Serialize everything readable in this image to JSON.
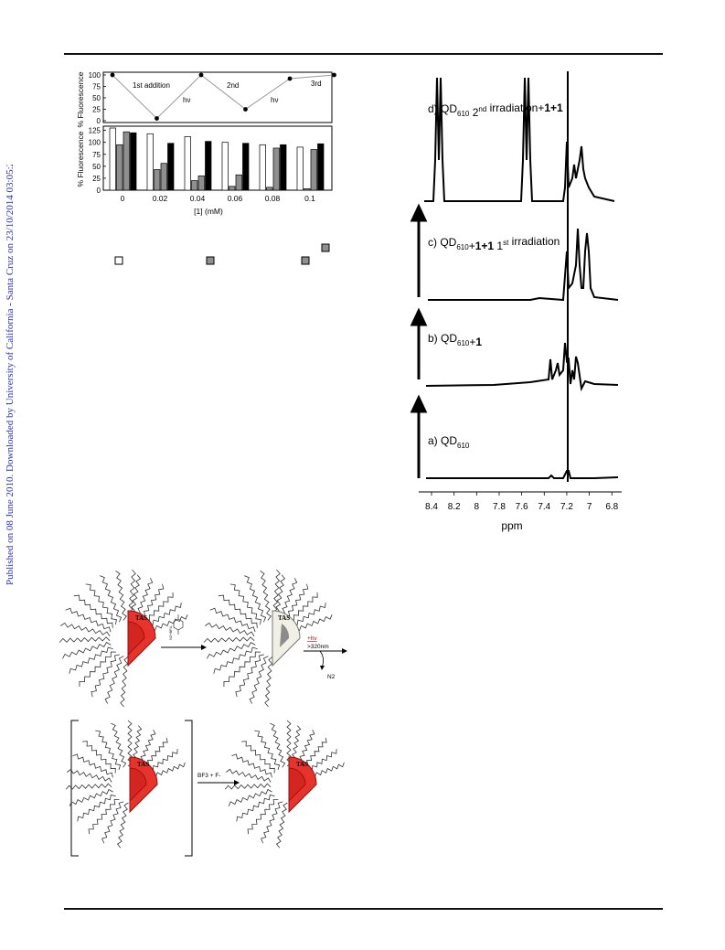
{
  "side_note": "Published on 08 June 2010. Downloaded by University of California - Santa Cruz on 23/10/2014 03:05:25.",
  "colors": {
    "link_blue": "#2f2fb8",
    "nanocrystal_red": "#e8322c",
    "bleached_core": "#f1efe6"
  },
  "fluorescence_figure": {
    "top_panel": {
      "ylabel": "% Fluorescence",
      "yticks": [
        "100",
        "75",
        "50",
        "25",
        "0"
      ],
      "annotations": [
        "1st addition",
        "hν",
        "2nd",
        "hν",
        "3rd"
      ],
      "points": [
        100,
        5,
        100,
        25,
        92,
        100
      ]
    },
    "bottom_panel": {
      "ylabel": "% Fluorescence",
      "yticks": [
        "125",
        "100",
        "75",
        "50",
        "25",
        "0"
      ],
      "xlabel": "[1] (mM)",
      "categories": [
        "0",
        "0.02",
        "0.04",
        "0.06",
        "0.08",
        "0.1"
      ],
      "series": [
        {
          "fill": "#ffffff",
          "values": [
            130,
            118,
            112,
            100,
            95,
            90
          ]
        },
        {
          "fill": "#8f8f8f",
          "values": [
            95,
            43,
            20,
            8,
            6,
            3
          ]
        },
        {
          "fill": "#8f8f8f",
          "values": [
            122,
            56,
            30,
            32,
            88,
            85
          ]
        },
        {
          "fill": "#000000",
          "values": [
            120,
            98,
            102,
            98,
            95,
            97
          ]
        }
      ]
    },
    "legend_swatches": [
      "#ffffff",
      "#8f8f8f",
      "#8f8f8f",
      "#8f8f8f"
    ]
  },
  "nmr_figure": {
    "xlabel": "ppm",
    "xticks": [
      "8.4",
      "8.2",
      "8",
      "7.8",
      "7.6",
      "7.4",
      "7.2",
      "7",
      "6.8"
    ],
    "spectra": [
      {
        "label": "d) QD",
        "sub": "610",
        "rest": " 2",
        "sup": "nd",
        "tail": " irradiation+",
        "bold": "1+1"
      },
      {
        "label": "c) QD",
        "sub": "610",
        "rest": "+",
        "boldmid": "1+1",
        "mid": " 1",
        "sup": "st",
        "tail": " irradiation"
      },
      {
        "label": "b) QD",
        "sub": "610",
        "rest": "+",
        "bold": "1"
      },
      {
        "label": "a) QD",
        "sub": "610"
      }
    ]
  },
  "scheme": {
    "core_label": "TAS",
    "reagent_label": "N2+BF4-",
    "irradiation_label": "+hν",
    "wavelength_label": ">320nm",
    "product_label": "N2",
    "bottom_reagent_label": "BF3 + F-"
  }
}
